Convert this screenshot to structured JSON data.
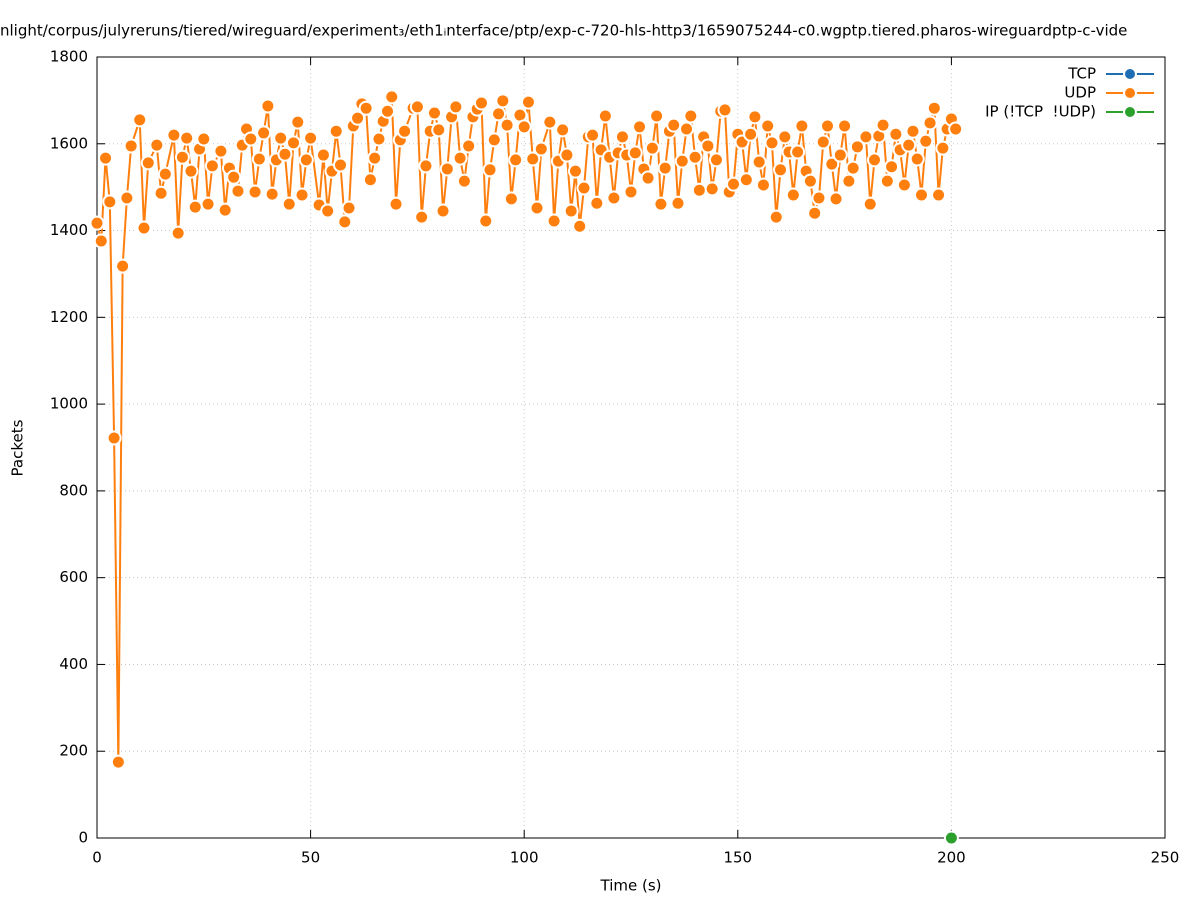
{
  "chart_data": {
    "type": "line",
    "title": "nlight/corpus/julyreruns/tiered/wireguard/experiment₃/eth1ᵢnterface/ptp/exp-c-720-hls-http3/1659075244-c0.wgptp.tiered.pharos-wireguardptp-c-vide",
    "xlabel": "Time (s)",
    "ylabel": "Packets",
    "xlim": [
      0,
      250
    ],
    "xticks": [
      0,
      50,
      100,
      150,
      200,
      250
    ],
    "ylim": [
      0,
      1800
    ],
    "yticks": [
      0,
      200,
      400,
      600,
      800,
      1000,
      1200,
      1400,
      1600,
      1800
    ],
    "grid": true,
    "legend": "top-right",
    "series": [
      {
        "name": "TCP",
        "color": "#1f6eb4",
        "x": [],
        "values": []
      },
      {
        "name": "UDP",
        "color": "#ff7f0e",
        "x": [
          0,
          1,
          2,
          3,
          4,
          5,
          6,
          7,
          8,
          10,
          11,
          12,
          14,
          15,
          16,
          18,
          19,
          20,
          21,
          22,
          23,
          24,
          25,
          26,
          27,
          29,
          30,
          31,
          32,
          33,
          34,
          35,
          36,
          37,
          38,
          39,
          40,
          41,
          42,
          43,
          44,
          45,
          46,
          47,
          48,
          49,
          50,
          52,
          53,
          54,
          55,
          56,
          57,
          58,
          59,
          60,
          61,
          62,
          63,
          64,
          65,
          66,
          67,
          68,
          69,
          70,
          71,
          72,
          74,
          75,
          76,
          77,
          78,
          79,
          80,
          81,
          82,
          83,
          84,
          85,
          86,
          87,
          88,
          89,
          90,
          91,
          92,
          93,
          94,
          95,
          96,
          97,
          98,
          99,
          100,
          101,
          102,
          103,
          104,
          106,
          107,
          108,
          109,
          110,
          111,
          112,
          113,
          114,
          115,
          116,
          117,
          118,
          119,
          120,
          121,
          122,
          123,
          124,
          125,
          126,
          127,
          128,
          129,
          130,
          131,
          132,
          133,
          134,
          135,
          136,
          137,
          138,
          139,
          140,
          141,
          142,
          143,
          144,
          145,
          146,
          147,
          148,
          149,
          150,
          151,
          152,
          153,
          154,
          155,
          156,
          157,
          158,
          159,
          160,
          161,
          162,
          163,
          164,
          165,
          166,
          167,
          168,
          169,
          170,
          171,
          172,
          173,
          174,
          175,
          176,
          177,
          178,
          180,
          181,
          182,
          183,
          184,
          185,
          186,
          187,
          188,
          189,
          190,
          191,
          192,
          193,
          194,
          195,
          196,
          197,
          198,
          199,
          200,
          201
        ],
        "values": [
          1417,
          1376,
          1567,
          1466,
          922,
          175,
          1318,
          1475,
          1595,
          1655,
          1406,
          1556,
          1597,
          1486,
          1530,
          1620,
          1394,
          1569,
          1613,
          1537,
          1454,
          1588,
          1611,
          1461,
          1549,
          1583,
          1447,
          1544,
          1523,
          1491,
          1597,
          1634,
          1611,
          1489,
          1565,
          1625,
          1687,
          1484,
          1563,
          1613,
          1576,
          1461,
          1602,
          1650,
          1482,
          1563,
          1613,
          1459,
          1574,
          1445,
          1537,
          1629,
          1551,
          1420,
          1452,
          1641,
          1659,
          1692,
          1682,
          1517,
          1567,
          1611,
          1652,
          1675,
          1708,
          1461,
          1609,
          1629,
          1682,
          1685,
          1431,
          1549,
          1629,
          1671,
          1632,
          1445,
          1542,
          1662,
          1685,
          1567,
          1514,
          1595,
          1662,
          1680,
          1694,
          1422,
          1540,
          1609,
          1669,
          1699,
          1643,
          1473,
          1563,
          1666,
          1639,
          1696,
          1565,
          1452,
          1588,
          1650,
          1422,
          1560,
          1632,
          1574,
          1445,
          1537,
          1410,
          1498,
          1616,
          1620,
          1463,
          1586,
          1664,
          1569,
          1475,
          1579,
          1616,
          1574,
          1489,
          1579,
          1639,
          1542,
          1521,
          1590,
          1664,
          1461,
          1544,
          1629,
          1643,
          1463,
          1560,
          1634,
          1664,
          1569,
          1493,
          1616,
          1595,
          1496,
          1563,
          1675,
          1678,
          1489,
          1507,
          1622,
          1604,
          1517,
          1622,
          1662,
          1558,
          1505,
          1641,
          1602,
          1431,
          1540,
          1616,
          1581,
          1482,
          1581,
          1641,
          1537,
          1514,
          1440,
          1475,
          1604,
          1641,
          1553,
          1473,
          1574,
          1641,
          1514,
          1544,
          1593,
          1616,
          1461,
          1563,
          1618,
          1643,
          1514,
          1547,
          1622,
          1586,
          1505,
          1597,
          1629,
          1565,
          1482,
          1606,
          1648,
          1682,
          1482,
          1590,
          1634,
          1657,
          1634
        ]
      },
      {
        "name": "IP (!TCP  !UDP)",
        "color": "#2ca02c",
        "x": [
          200
        ],
        "values": [
          0
        ]
      }
    ]
  }
}
